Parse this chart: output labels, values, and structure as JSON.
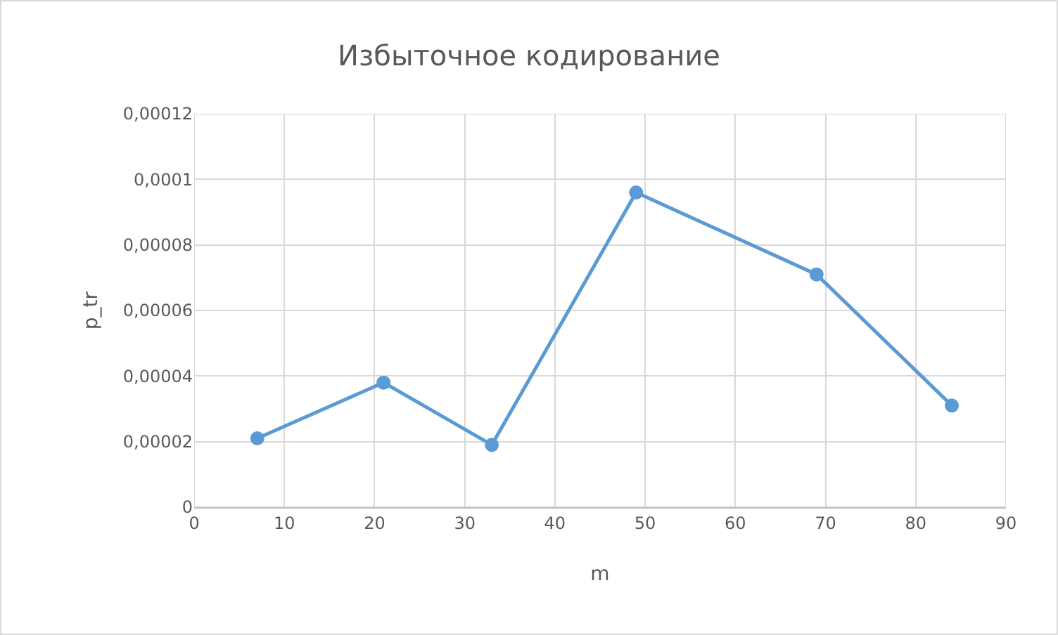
{
  "chart_data": {
    "type": "line",
    "title": "Избыточное кодирование",
    "xlabel": "m",
    "ylabel": "p_tr",
    "x": [
      7,
      21,
      33,
      49,
      69,
      84
    ],
    "series": [
      {
        "color": "#5b9bd5",
        "values": [
          2.1e-05,
          3.8e-05,
          1.9e-05,
          9.6e-05,
          7.1e-05,
          3.1e-05
        ]
      }
    ],
    "xlim": [
      0,
      90
    ],
    "xticks": [
      0,
      10,
      20,
      30,
      40,
      50,
      60,
      70,
      80,
      90
    ],
    "ylim": [
      0,
      0.00012
    ],
    "yticks": [
      0,
      {
        "value": 2e-05,
        "label": "0,00002"
      },
      {
        "value": 4e-05,
        "label": "0,00004"
      },
      {
        "value": 6e-05,
        "label": "0,00006"
      },
      {
        "value": 8e-05,
        "label": "0,00008"
      },
      {
        "value": 0.0001,
        "label": "0,0001"
      },
      {
        "value": 0.00012,
        "label": "0,00012"
      }
    ],
    "grid": true,
    "marker": "circle",
    "line_style": "solid"
  }
}
